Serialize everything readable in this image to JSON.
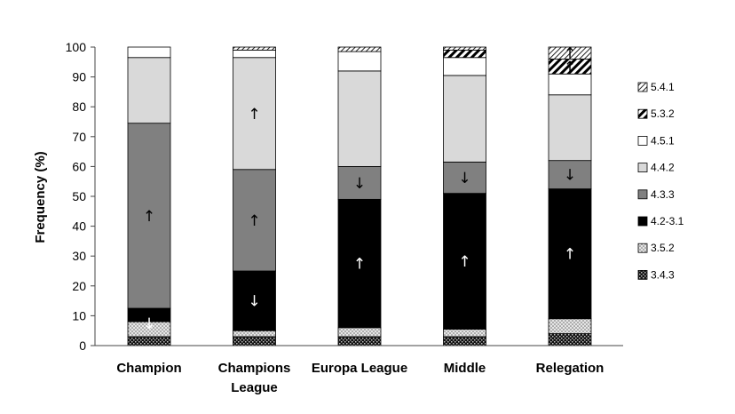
{
  "chart_data": {
    "type": "bar",
    "stacked": true,
    "ylabel": "Frequency (%)",
    "xlabel": "",
    "ylim": [
      0,
      100
    ],
    "yticks": [
      0,
      10,
      20,
      30,
      40,
      50,
      60,
      70,
      80,
      90,
      100
    ],
    "categories": [
      "Champion",
      "Champions League",
      "Europa League",
      "Middle",
      "Relegation"
    ],
    "series": [
      {
        "name": "3.4.3",
        "values": [
          3,
          3,
          3,
          3,
          4
        ]
      },
      {
        "name": "3.5.2",
        "values": [
          5,
          2,
          3,
          2.5,
          5
        ]
      },
      {
        "name": "4.2-3.1",
        "values": [
          4.5,
          20,
          43,
          45.5,
          43.5
        ]
      },
      {
        "name": "4.3.3",
        "values": [
          62,
          34,
          11,
          10.5,
          9.5
        ]
      },
      {
        "name": "4.4.2",
        "values": [
          22,
          37.5,
          32,
          29,
          22
        ]
      },
      {
        "name": "4.5.1",
        "values": [
          3.5,
          2.5,
          6.5,
          6,
          7
        ]
      },
      {
        "name": "5.3.2",
        "values": [
          0,
          0,
          0,
          2.5,
          5
        ]
      },
      {
        "name": "5.4.1",
        "values": [
          0,
          1,
          1.5,
          1,
          4
        ]
      }
    ],
    "legend_position": "right",
    "annotations": [
      {
        "category": "Champion",
        "series": "4.3.3",
        "symbol": "↑"
      },
      {
        "category": "Champion",
        "series": "4.2-3.1",
        "symbol": "↓"
      },
      {
        "category": "Champions League",
        "series": "4.4.2",
        "symbol": "↑"
      },
      {
        "category": "Champions League",
        "series": "4.3.3",
        "symbol": "↑"
      },
      {
        "category": "Champions League",
        "series": "4.2-3.1",
        "symbol": "↓"
      },
      {
        "category": "Europa League",
        "series": "4.3.3",
        "symbol": "↓"
      },
      {
        "category": "Europa League",
        "series": "4.2-3.1",
        "symbol": "↑"
      },
      {
        "category": "Middle",
        "series": "4.3.3",
        "symbol": "↓"
      },
      {
        "category": "Middle",
        "series": "4.2-3.1",
        "symbol": "↑"
      },
      {
        "category": "Relegation",
        "series": "4.3.3",
        "symbol": "↓"
      },
      {
        "category": "Relegation",
        "series": "4.2-3.1",
        "symbol": "↑"
      },
      {
        "category": "Relegation",
        "series": "5.3.2",
        "symbol": "↑"
      },
      {
        "category": "Relegation",
        "series": "5.4.1",
        "symbol": "↑"
      }
    ],
    "grid": false
  }
}
